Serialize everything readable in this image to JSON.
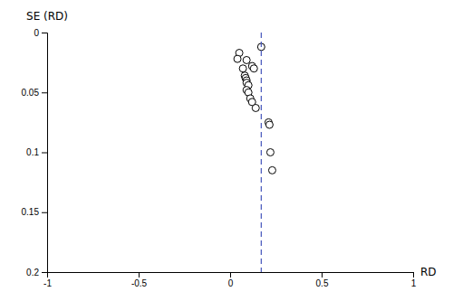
{
  "chart_data": {
    "type": "scatter",
    "xlabel": "RD",
    "ylabel": "SE (RD)",
    "xlim": [
      -1,
      1
    ],
    "ylim": [
      0.2,
      0
    ],
    "xticks": [
      -1,
      -0.5,
      0,
      0.5,
      1
    ],
    "yticks": [
      0,
      0.05,
      0.1,
      0.15,
      0.2
    ],
    "series": [
      {
        "type": "scatter",
        "marker": "circle-open",
        "color": "black",
        "x": [
          0.05,
          0.17,
          0.04,
          0.09,
          0.07,
          0.08,
          0.085,
          0.09,
          0.09,
          0.1,
          0.09,
          0.1,
          0.11,
          0.12,
          0.14,
          0.21,
          0.215,
          0.22,
          0.23,
          0.12,
          0.13
        ],
        "values": [
          0.017,
          0.012,
          0.022,
          0.023,
          0.03,
          0.036,
          0.038,
          0.04,
          0.042,
          0.044,
          0.048,
          0.05,
          0.055,
          0.058,
          0.063,
          0.075,
          0.077,
          0.1,
          0.115,
          0.028,
          0.03
        ]
      },
      {
        "type": "vline",
        "line_style": "dashed",
        "color": "#4455bb",
        "x": [
          0.17
        ]
      }
    ]
  }
}
